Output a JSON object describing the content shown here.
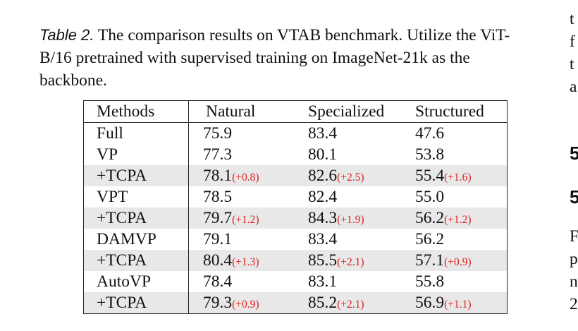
{
  "caption": {
    "label": "Table 2.",
    "text": " The comparison results on VTAB benchmark. Utilize the ViT-B/16 pretrained with supervised training on ImageNet-21k as the backbone."
  },
  "table": {
    "headers": [
      "Methods",
      "Natural",
      "Specialized",
      "Structured"
    ],
    "rows": [
      {
        "method": "Full",
        "bold": false,
        "shaded": false,
        "vals": [
          {
            "v": "75.9",
            "d": ""
          },
          {
            "v": "83.4",
            "d": ""
          },
          {
            "v": "47.6",
            "d": ""
          }
        ]
      },
      {
        "method": "VP",
        "bold": false,
        "shaded": false,
        "vals": [
          {
            "v": "77.3",
            "d": ""
          },
          {
            "v": "80.1",
            "d": ""
          },
          {
            "v": "53.8",
            "d": ""
          }
        ]
      },
      {
        "method": "+TCPA",
        "bold": true,
        "shaded": true,
        "vals": [
          {
            "v": "78.1",
            "d": "(+0.8)"
          },
          {
            "v": "82.6",
            "d": "(+2.5)"
          },
          {
            "v": "55.4",
            "d": "(+1.6)"
          }
        ]
      },
      {
        "method": "VPT",
        "bold": false,
        "shaded": false,
        "vals": [
          {
            "v": "78.5",
            "d": ""
          },
          {
            "v": "82.4",
            "d": ""
          },
          {
            "v": "55.0",
            "d": ""
          }
        ]
      },
      {
        "method": "+TCPA",
        "bold": true,
        "shaded": true,
        "vals": [
          {
            "v": "79.7",
            "d": "(+1.2)"
          },
          {
            "v": "84.3",
            "d": "(+1.9)"
          },
          {
            "v": "56.2",
            "d": "(+1.2)"
          }
        ]
      },
      {
        "method": "DAMVP",
        "bold": false,
        "shaded": false,
        "vals": [
          {
            "v": "79.1",
            "d": ""
          },
          {
            "v": "83.4",
            "d": ""
          },
          {
            "v": "56.2",
            "d": ""
          }
        ]
      },
      {
        "method": "+TCPA",
        "bold": true,
        "shaded": true,
        "vals": [
          {
            "v": "80.4",
            "d": "(+1.3)"
          },
          {
            "v": "85.5",
            "d": "(+2.1)"
          },
          {
            "v": "57.1",
            "d": "(+0.9)"
          }
        ]
      },
      {
        "method": "AutoVP",
        "bold": false,
        "shaded": false,
        "vals": [
          {
            "v": "78.4",
            "d": ""
          },
          {
            "v": "83.1",
            "d": ""
          },
          {
            "v": "55.8",
            "d": ""
          }
        ]
      },
      {
        "method": "+TCPA",
        "bold": true,
        "shaded": true,
        "vals": [
          {
            "v": "79.3",
            "d": "(+0.9)"
          },
          {
            "v": "85.2",
            "d": "(+2.1)"
          },
          {
            "v": "56.9",
            "d": "(+1.1)"
          }
        ]
      }
    ]
  },
  "right_column": [
    "t",
    "f",
    "t",
    "a",
    "5",
    "5",
    "F",
    "p",
    "n",
    "2"
  ],
  "colors": {
    "delta": "#dd2222",
    "shade": "#e8e8e8"
  }
}
